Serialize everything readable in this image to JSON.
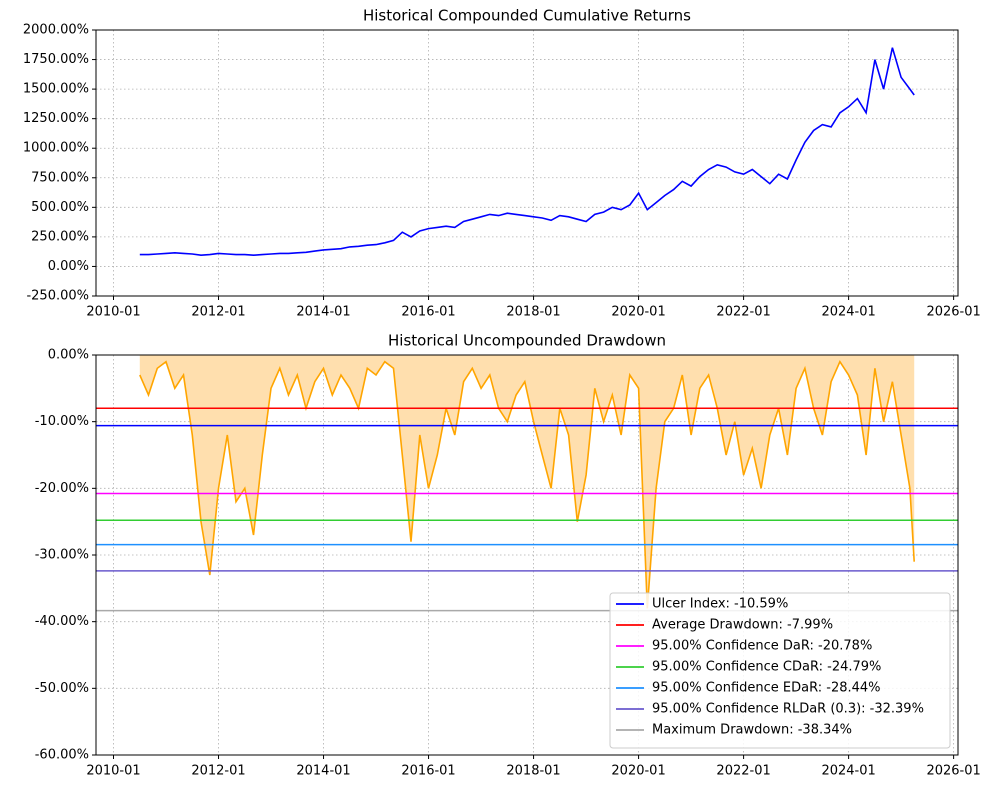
{
  "chart_data": [
    {
      "type": "line",
      "title": "Historical Compounded Cumulative Returns",
      "color": "#0000ff",
      "grid": true,
      "x": [
        "2010-07",
        "2010-09",
        "2010-11",
        "2011-01",
        "2011-03",
        "2011-05",
        "2011-07",
        "2011-09",
        "2011-11",
        "2012-01",
        "2012-03",
        "2012-05",
        "2012-07",
        "2012-09",
        "2012-11",
        "2013-01",
        "2013-03",
        "2013-05",
        "2013-07",
        "2013-09",
        "2013-11",
        "2014-01",
        "2014-03",
        "2014-05",
        "2014-07",
        "2014-09",
        "2014-11",
        "2015-01",
        "2015-03",
        "2015-05",
        "2015-07",
        "2015-09",
        "2015-11",
        "2016-01",
        "2016-03",
        "2016-05",
        "2016-07",
        "2016-09",
        "2016-11",
        "2017-01",
        "2017-03",
        "2017-05",
        "2017-07",
        "2017-09",
        "2017-11",
        "2018-01",
        "2018-03",
        "2018-05",
        "2018-07",
        "2018-09",
        "2018-11",
        "2019-01",
        "2019-03",
        "2019-05",
        "2019-07",
        "2019-09",
        "2019-11",
        "2020-01",
        "2020-03",
        "2020-05",
        "2020-07",
        "2020-09",
        "2020-11",
        "2021-01",
        "2021-03",
        "2021-05",
        "2021-07",
        "2021-09",
        "2021-11",
        "2022-01",
        "2022-03",
        "2022-05",
        "2022-07",
        "2022-09",
        "2022-11",
        "2023-01",
        "2023-03",
        "2023-05",
        "2023-07",
        "2023-09",
        "2023-11",
        "2024-01",
        "2024-03",
        "2024-05",
        "2024-07",
        "2024-09",
        "2024-11",
        "2025-01",
        "2025-03",
        "2025-04"
      ],
      "values": [
        100,
        100,
        105,
        110,
        115,
        110,
        105,
        95,
        100,
        110,
        105,
        100,
        100,
        95,
        100,
        105,
        110,
        110,
        115,
        120,
        130,
        140,
        145,
        150,
        165,
        170,
        180,
        185,
        200,
        220,
        290,
        250,
        300,
        320,
        330,
        340,
        330,
        380,
        400,
        420,
        440,
        430,
        450,
        440,
        430,
        420,
        410,
        390,
        430,
        420,
        400,
        380,
        440,
        460,
        500,
        480,
        520,
        620,
        480,
        540,
        600,
        650,
        720,
        680,
        760,
        820,
        860,
        840,
        800,
        780,
        820,
        760,
        700,
        780,
        740,
        900,
        1050,
        1150,
        1200,
        1180,
        1300,
        1350,
        1420,
        1300,
        1750,
        1500,
        1850,
        1600,
        1500,
        1450
      ],
      "xlim": [
        "2009-09",
        "2026-02"
      ],
      "xticks": [
        "2010-01",
        "2012-01",
        "2014-01",
        "2016-01",
        "2018-01",
        "2020-01",
        "2022-01",
        "2024-01",
        "2026-01"
      ],
      "ylim": [
        -250,
        2000
      ],
      "yticks": [
        {
          "value": -250,
          "label": "-250.00%"
        },
        {
          "value": 0,
          "label": "0.00%"
        },
        {
          "value": 250,
          "label": "250.00%"
        },
        {
          "value": 500,
          "label": "500.00%"
        },
        {
          "value": 750,
          "label": "750.00%"
        },
        {
          "value": 1000,
          "label": "1000.00%"
        },
        {
          "value": 1250,
          "label": "1250.00%"
        },
        {
          "value": 1500,
          "label": "1500.00%"
        },
        {
          "value": 1750,
          "label": "1750.00%"
        },
        {
          "value": 2000,
          "label": "2000.00%"
        }
      ]
    },
    {
      "type": "area",
      "title": "Historical Uncompounded Drawdown",
      "color": "#ffa500",
      "fill": "#ffdfae",
      "grid": true,
      "legend": "lower right",
      "x": [
        "2010-07",
        "2010-09",
        "2010-11",
        "2011-01",
        "2011-03",
        "2011-05",
        "2011-07",
        "2011-09",
        "2011-11",
        "2012-01",
        "2012-03",
        "2012-05",
        "2012-07",
        "2012-09",
        "2012-11",
        "2013-01",
        "2013-03",
        "2013-05",
        "2013-07",
        "2013-09",
        "2013-11",
        "2014-01",
        "2014-03",
        "2014-05",
        "2014-07",
        "2014-09",
        "2014-11",
        "2015-01",
        "2015-03",
        "2015-05",
        "2015-07",
        "2015-09",
        "2015-11",
        "2016-01",
        "2016-03",
        "2016-05",
        "2016-07",
        "2016-09",
        "2016-11",
        "2017-01",
        "2017-03",
        "2017-05",
        "2017-07",
        "2017-09",
        "2017-11",
        "2018-01",
        "2018-03",
        "2018-05",
        "2018-07",
        "2018-09",
        "2018-11",
        "2019-01",
        "2019-03",
        "2019-05",
        "2019-07",
        "2019-09",
        "2019-11",
        "2020-01",
        "2020-03",
        "2020-05",
        "2020-07",
        "2020-09",
        "2020-11",
        "2021-01",
        "2021-03",
        "2021-05",
        "2021-07",
        "2021-09",
        "2021-11",
        "2022-01",
        "2022-03",
        "2022-05",
        "2022-07",
        "2022-09",
        "2022-11",
        "2023-01",
        "2023-03",
        "2023-05",
        "2023-07",
        "2023-09",
        "2023-11",
        "2024-01",
        "2024-03",
        "2024-05",
        "2024-07",
        "2024-09",
        "2024-11",
        "2025-01",
        "2025-03",
        "2025-04"
      ],
      "values": [
        -3,
        -6,
        -2,
        -1,
        -5,
        -3,
        -12,
        -25,
        -33,
        -20,
        -12,
        -22,
        -20,
        -27,
        -15,
        -5,
        -2,
        -6,
        -3,
        -8,
        -4,
        -2,
        -6,
        -3,
        -5,
        -8,
        -2,
        -3,
        -1,
        -2,
        -15,
        -28,
        -12,
        -20,
        -15,
        -8,
        -12,
        -4,
        -2,
        -5,
        -3,
        -8,
        -10,
        -6,
        -4,
        -10,
        -15,
        -20,
        -8,
        -12,
        -25,
        -18,
        -5,
        -10,
        -6,
        -12,
        -3,
        -5,
        -38,
        -20,
        -10,
        -8,
        -3,
        -12,
        -5,
        -3,
        -8,
        -15,
        -10,
        -18,
        -14,
        -20,
        -12,
        -8,
        -15,
        -5,
        -2,
        -8,
        -12,
        -4,
        -1,
        -3,
        -6,
        -15,
        -2,
        -10,
        -4,
        -12,
        -20,
        -31
      ],
      "reference_lines": [
        {
          "name": "Ulcer Index: -10.59%",
          "color": "#0000ff",
          "value": -10.59
        },
        {
          "name": "Average Drawdown: -7.99%",
          "color": "#ff0000",
          "value": -7.99
        },
        {
          "name": "95.00% Confidence DaR: -20.78%",
          "color": "#ff00ff",
          "value": -20.78
        },
        {
          "name": "95.00% Confidence CDaR: -24.79%",
          "color": "#32cd32",
          "value": -24.79
        },
        {
          "name": "95.00% Confidence EDaR: -28.44%",
          "color": "#1e90ff",
          "value": -28.44
        },
        {
          "name": "95.00% Confidence RLDaR (0.3): -32.39%",
          "color": "#6a5acd",
          "value": -32.39
        },
        {
          "name": "Maximum Drawdown: -38.34%",
          "color": "#a9a9a9",
          "value": -38.34
        }
      ],
      "xlim": [
        "2009-09",
        "2026-02"
      ],
      "xticks": [
        "2010-01",
        "2012-01",
        "2014-01",
        "2016-01",
        "2018-01",
        "2020-01",
        "2022-01",
        "2024-01",
        "2026-01"
      ],
      "ylim": [
        -60,
        0
      ],
      "yticks": [
        {
          "value": -60,
          "label": "-60.00%"
        },
        {
          "value": -50,
          "label": "-50.00%"
        },
        {
          "value": -40,
          "label": "-40.00%"
        },
        {
          "value": -30,
          "label": "-30.00%"
        },
        {
          "value": -20,
          "label": "-20.00%"
        },
        {
          "value": -10,
          "label": "-10.00%"
        },
        {
          "value": 0,
          "label": "0.00%"
        }
      ]
    }
  ]
}
